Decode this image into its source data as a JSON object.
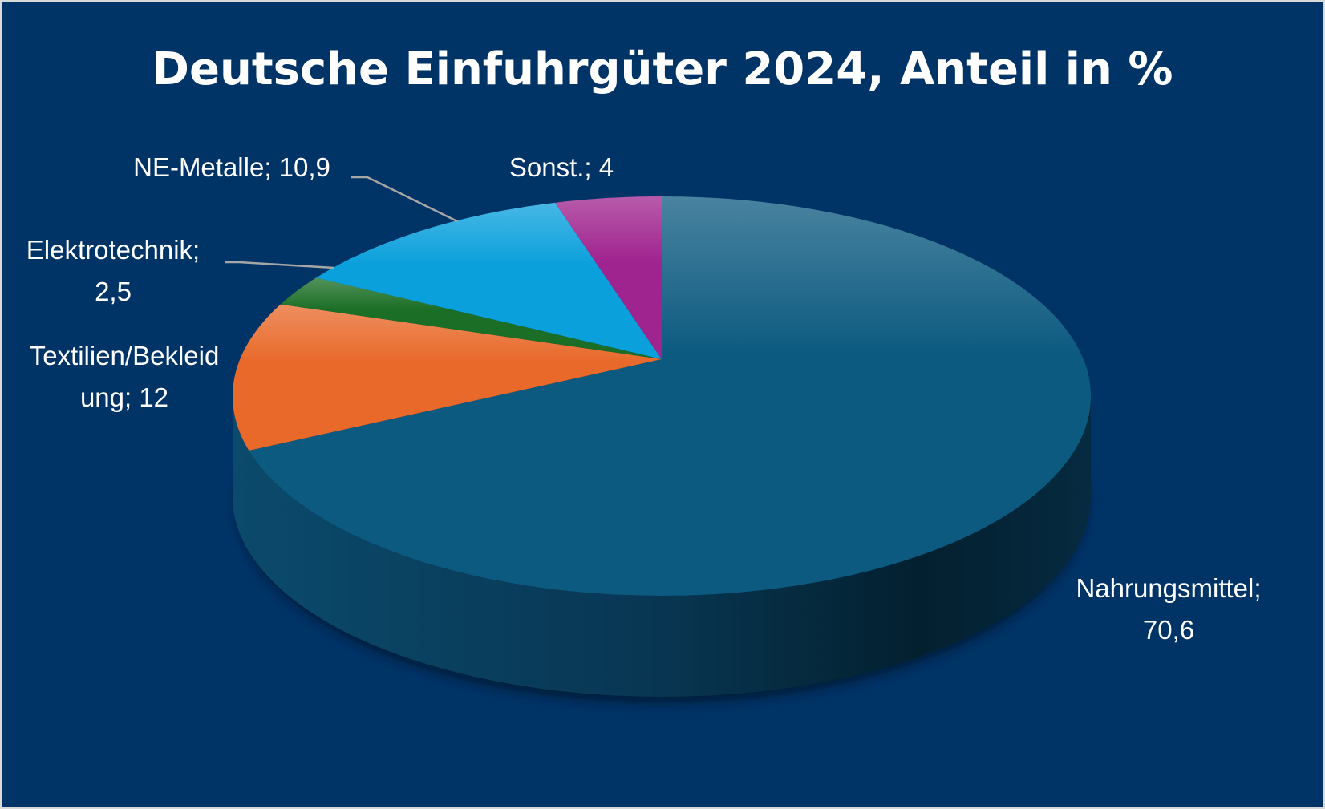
{
  "chart_data": {
    "type": "pie",
    "variant": "3d",
    "title": "Deutsche Einfuhrgüter 2024, Anteil in %",
    "slices": [
      {
        "name": "Nahrungsmittel",
        "value": 70.6,
        "label_lines": [
          "Nahrungsmittel;",
          "70,6"
        ],
        "color": "#0c5a80"
      },
      {
        "name": "Textilien/Bekleidung",
        "value": 12,
        "label_lines": [
          "Textilien/Bekleid",
          "ung; 12"
        ],
        "color": "#e8692a"
      },
      {
        "name": "Elektrotechnik",
        "value": 2.5,
        "label_lines": [
          "Elektrotechnik;",
          "2,5"
        ],
        "color": "#1a6e25"
      },
      {
        "name": "NE-Metalle",
        "value": 10.9,
        "label_lines": [
          "NE-Metalle; 10,9"
        ],
        "color": "#0aa0dc"
      },
      {
        "name": "Sonst.",
        "value": 4,
        "label_lines": [
          "Sonst.; 4"
        ],
        "color": "#a0248f"
      }
    ],
    "legend": "none",
    "background_color": "#003366"
  }
}
